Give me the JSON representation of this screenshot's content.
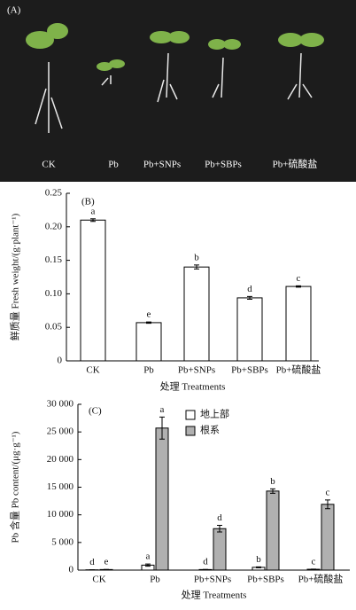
{
  "photo": {
    "panel_label": "(A)",
    "labels": [
      "CK",
      "Pb",
      "Pb+SNPs",
      "Pb+SBPs",
      "Pb+硫酸盐"
    ]
  },
  "chart_data": [
    {
      "type": "bar",
      "panel_label": "(B)",
      "ylabel": "鲜质量 Fresh weight/(g·plant⁻¹)",
      "xlabel": "处理 Treatments",
      "categories": [
        "CK",
        "Pb",
        "Pb+SNPs",
        "Pb+SBPs",
        "Pb+硫酸盐"
      ],
      "values": [
        0.21,
        0.057,
        0.14,
        0.094,
        0.111
      ],
      "errors": [
        0.002,
        0.001,
        0.003,
        0.002,
        0.001
      ],
      "letters": [
        "a",
        "e",
        "b",
        "d",
        "c"
      ],
      "color": "#ffffff",
      "ylim": [
        0,
        0.25
      ],
      "yticks": [
        0,
        0.05,
        {
          "value": 0.1,
          "label": "0.10"
        },
        0.15,
        {
          "value": 0.2,
          "label": "0.20"
        },
        0.25
      ]
    },
    {
      "type": "bar",
      "panel_label": "(C)",
      "ylabel": "Pb 含量 Pb content/(μg·g⁻¹)",
      "xlabel": "处理 Treatments",
      "categories": [
        "CK",
        "Pb",
        "Pb+SNPs",
        "Pb+SBPs",
        "Pb+硫酸盐"
      ],
      "series": [
        {
          "name": "地上部",
          "color": "#ffffff",
          "values": [
            50,
            900,
            100,
            500,
            150
          ],
          "errors": [
            20,
            200,
            30,
            80,
            40
          ],
          "letters": [
            "d",
            "a",
            "d",
            "b",
            "c"
          ]
        },
        {
          "name": "根系",
          "color": "#b0b0b0",
          "values": [
            100,
            25700,
            7500,
            14300,
            11900
          ],
          "errors": [
            30,
            2000,
            600,
            400,
            800
          ],
          "letters": [
            "e",
            "a",
            "d",
            "b",
            "c"
          ]
        }
      ],
      "ylim": [
        0,
        30000
      ],
      "yticks": [
        0,
        {
          "value": 5000,
          "label": "5 000"
        },
        {
          "value": 10000,
          "label": "10 000"
        },
        {
          "value": 15000,
          "label": "15 000"
        },
        {
          "value": 20000,
          "label": "20 000"
        },
        {
          "value": 25000,
          "label": "25 000"
        },
        {
          "value": 30000,
          "label": "30 000"
        }
      ],
      "legend": "upper-left"
    }
  ]
}
